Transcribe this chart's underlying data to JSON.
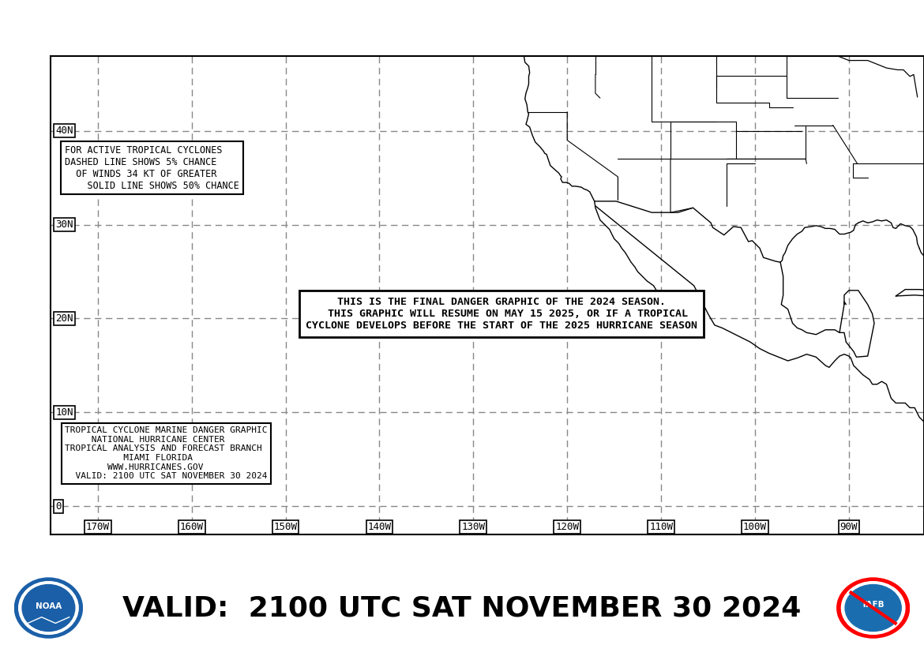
{
  "title": "VALID:  2100 UTC SAT NOVEMBER 30 2024",
  "title_fontsize": 26,
  "title_color": "#000000",
  "background_color": "#ffffff",
  "map_bg_color": "#ffffff",
  "grid_color": "#888888",
  "grid_linestyle": "--",
  "grid_linewidth": 1.0,
  "lat_ticks": [
    0,
    10,
    20,
    30,
    40
  ],
  "lon_ticks": [
    -170,
    -160,
    -150,
    -140,
    -130,
    -120,
    -110,
    -100,
    -90
  ],
  "lat_labels": [
    "0",
    "10N",
    "20N",
    "30N",
    "40N"
  ],
  "lon_labels": [
    "170W",
    "160W",
    "150W",
    "140W",
    "130W",
    "120W",
    "110W",
    "100W",
    "90W"
  ],
  "xlim": [
    -175,
    -82
  ],
  "ylim": [
    -3,
    48
  ],
  "legend_text": "FOR ACTIVE TROPICAL CYCLONES\nDASHED LINE SHOWS 5% CHANCE\n  OF WINDS 34 KT OF GREATER\n    SOLID LINE SHOWS 50% CHANCE",
  "center_text": "THIS IS THE FINAL DANGER GRAPHIC OF THE 2024 SEASON.\n  THIS GRAPHIC WILL RESUME ON MAY 15 2025, OR IF A TROPICAL\nCYCLONE DEVELOPS BEFORE THE START OF THE 2025 HURRICANE SEASON",
  "info_text": "TROPICAL CYCLONE MARINE DANGER GRAPHIC\n     NATIONAL HURRICANE CENTER\nTROPICAL ANALYSIS AND FORECAST BRANCH\n           MIAMI FLORIDA\n        WWW.HURRICANES.GOV\n  VALID: 2100 UTC SAT NOVEMBER 30 2024",
  "coastline_color": "#000000",
  "border_color": "#000000",
  "monospace_font": "monospace"
}
